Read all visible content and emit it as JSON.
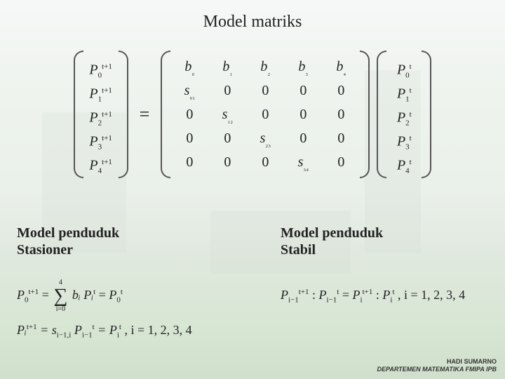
{
  "title": "Model matriks",
  "matrix": {
    "lhs_vector": [
      "P₀",
      "P₁",
      "P₂",
      "P₃",
      "P₄"
    ],
    "lhs_super": "t+1",
    "rhs_vector": [
      "P₀",
      "P₁",
      "P₂",
      "P₃",
      "P₄"
    ],
    "rhs_super": "t",
    "rows": [
      [
        "b₀",
        "b₁",
        "b₂",
        "b₃",
        "b₄"
      ],
      [
        "s₀₁",
        "0",
        "0",
        "0",
        "0"
      ],
      [
        "0",
        "s₁₂",
        "0",
        "0",
        "0"
      ],
      [
        "0",
        "0",
        "s₂₃",
        "0",
        "0"
      ],
      [
        "0",
        "0",
        "0",
        "s₃₄",
        "0"
      ]
    ],
    "eq": "="
  },
  "sections": {
    "stasioner_label": "Model penduduk\nStasioner",
    "stabil_label": "Model penduduk\nStabil"
  },
  "eq1": {
    "lhs": "P",
    "lhs_sub": "0",
    "lhs_sup": "t+1",
    "sum_upper": "4",
    "sum_lower": "i=0",
    "body": "bᵢ Pᵢ",
    "body_sup": "t",
    "rhs": "P",
    "rhs_sub": "0",
    "rhs_sup": "t",
    "eq": "="
  },
  "eq2": {
    "text": "Pᵢ",
    "sup": "t+1",
    "mid": " = s",
    "mid_sub": "i−1,i",
    "p2": " P",
    "p2_sub": "i−1",
    "p2_sup": "t",
    "eq2": " = P",
    "eq2_sub": "i",
    "eq2_sup": "t",
    "tail": " , i = 1, 2, 3, 4"
  },
  "eq3": {
    "a": "P",
    "a_sub": "i−1",
    "a_sup": "t+1",
    "b": "P",
    "b_sub": "i−1",
    "b_sup": "t",
    "c": "P",
    "c_sub": "i",
    "c_sup": "t+1",
    "d": "P",
    "d_sub": "i",
    "d_sup": "t",
    "colon": " : ",
    "eq": " = ",
    "tail": ",    i = 1, 2, 3, 4"
  },
  "footer": {
    "name": "HADI SUMARNO",
    "dept": "DEPARTEMEN MATEMATIKA FMIPA IPB"
  },
  "colors": {
    "text": "#222222",
    "bracket": "#555555"
  }
}
